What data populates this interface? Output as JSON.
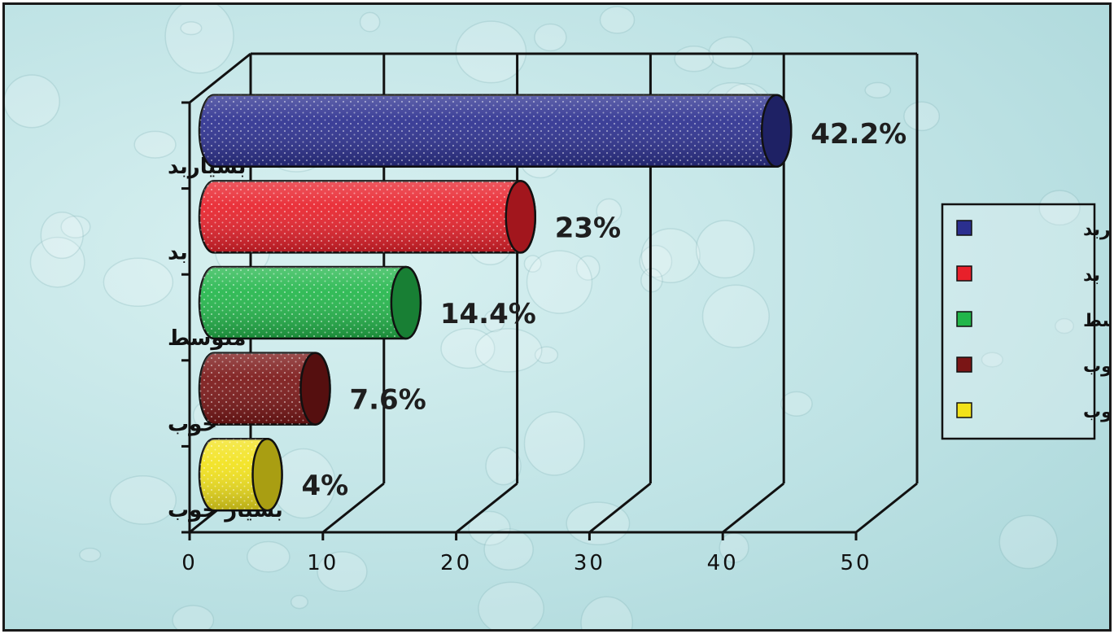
{
  "chart_data": {
    "type": "bar",
    "orientation": "horizontal",
    "style": "3d-cylinder",
    "categories": [
      "بسیاربد",
      "بد",
      "متوسط",
      "خوب",
      "بسیار خوب"
    ],
    "values": [
      42.2,
      23,
      14.4,
      7.6,
      4
    ],
    "data_labels": [
      "42.2%",
      "23%",
      "14.4%",
      "7.6%",
      "4%"
    ],
    "colors": [
      "#2b2f8f",
      "#e8202a",
      "#22b64a",
      "#7a1515",
      "#f2e21a"
    ],
    "xlim": [
      0,
      50
    ],
    "xticks": [
      0,
      10,
      20,
      30,
      40,
      50
    ],
    "grid": true,
    "legend": {
      "position": "right",
      "entries": [
        "بسیاربد",
        "بد",
        "متوسط",
        "خوب",
        "بسیار خوب"
      ]
    }
  }
}
